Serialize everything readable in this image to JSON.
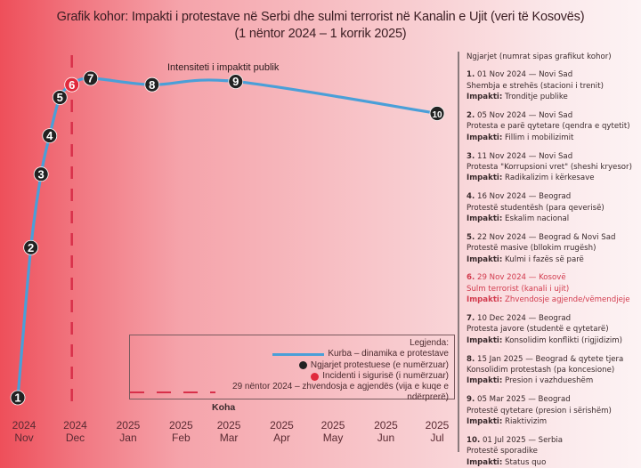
{
  "title": {
    "line1": "Grafik kohor: Impakti i protestave në Serbi dhe sulmi terrorist në Kanalin e Ujit (veri të Kosovës)",
    "line2": "(1 nëntor 2024 – 1 korrik 2025)"
  },
  "chart_data": {
    "type": "line",
    "title": "Grafik kohor: Impakti i protestave në Serbi dhe sulmi terrorist në Kanalin e Ujit (veri të Kosovës) (1 nëntor 2024 – 1 korrik 2025)",
    "xlabel": "Koha",
    "ylabel": "Intensiteti i impaktit publik",
    "x_unit": "days since 1 Nov 2024",
    "xlim": [
      0,
      242
    ],
    "ylim": [
      0,
      100
    ],
    "grid": false,
    "legend_position": "bottom-center",
    "x_ticks": [
      {
        "day": 0,
        "year": "2024",
        "month": "Nov"
      },
      {
        "day": 30,
        "year": "2024",
        "month": "Dec"
      },
      {
        "day": 61,
        "year": "2025",
        "month": "Jan"
      },
      {
        "day": 92,
        "year": "2025",
        "month": "Feb"
      },
      {
        "day": 120,
        "year": "2025",
        "month": "Mar"
      },
      {
        "day": 151,
        "year": "2025",
        "month": "Apr"
      },
      {
        "day": 181,
        "year": "2025",
        "month": "May"
      },
      {
        "day": 212,
        "year": "2025",
        "month": "Jun"
      },
      {
        "day": 242,
        "year": "2025",
        "month": "Jul"
      }
    ],
    "series": [
      {
        "name": "Kurba – dinamika e protestave",
        "color": "#4a9fd8",
        "points": [
          {
            "label": "1",
            "day": 0,
            "value": 0,
            "kind": "protest"
          },
          {
            "label": "2",
            "day": 4,
            "value": 47,
            "kind": "protest"
          },
          {
            "label": "3",
            "day": 10,
            "value": 70,
            "kind": "protest"
          },
          {
            "label": "4",
            "day": 15,
            "value": 82,
            "kind": "protest"
          },
          {
            "label": "5",
            "day": 21,
            "value": 94,
            "kind": "protest"
          },
          {
            "label": "6",
            "day": 28,
            "value": 98,
            "kind": "incident"
          },
          {
            "label": "7",
            "day": 39,
            "value": 100,
            "kind": "protest"
          },
          {
            "label": "8",
            "day": 75,
            "value": 98,
            "kind": "protest"
          },
          {
            "label": "9",
            "day": 124,
            "value": 99,
            "kind": "protest"
          },
          {
            "label": "10",
            "day": 242,
            "value": 89,
            "kind": "protest"
          }
        ]
      }
    ],
    "vline": {
      "day": 28,
      "color": "#d8304a",
      "label": "29 nëntor 2024 – zhvendosja e agjendës (vija e kuqe e ndërprerë)"
    },
    "annotation": "Intensiteti i impaktit publik",
    "colors": {
      "protest": "#222222",
      "incident": "#e02a3c",
      "curve": "#4a9fd8"
    }
  },
  "legend": {
    "title": "Legjenda:",
    "curve": "Kurba – dinamika e protestave",
    "protest": "Ngjarjet protestuese (e numërzuar)",
    "incident": "Incidenti i sigurisë (i numërzuar)",
    "dashed": "29 nëntor 2024 – zhvendosja e agjendës (vija e kuqe e ndërprerë)"
  },
  "sidebar": {
    "heading": "Ngjarjet (numrat sipas grafikut kohor)",
    "impact_label": "Impakti:",
    "events": [
      {
        "num": "1.",
        "date": "01 Nov 2024 — Novi Sad",
        "desc": "Shembja e strehës (stacioni i trenit)",
        "impact": "Tronditje publike"
      },
      {
        "num": "2.",
        "date": "05 Nov 2024 — Novi Sad",
        "desc": "Protesta e parë qytetare (qendra e qytetit)",
        "impact": "Fillim i mobilizimit"
      },
      {
        "num": "3.",
        "date": "11 Nov 2024 — Novi Sad",
        "desc": "Protesta \"Korrupsioni vret\" (sheshi kryesor)",
        "impact": "Radikalizim i kërkesave"
      },
      {
        "num": "4.",
        "date": "16 Nov 2024 — Beograd",
        "desc": "Protestë studentësh (para qeverisë)",
        "impact": "Eskalim nacional"
      },
      {
        "num": "5.",
        "date": "22 Nov 2024 — Beograd & Novi Sad",
        "desc": "Protestë masive (bllokim rrugësh)",
        "impact": "Kulmi i fazës së parë"
      },
      {
        "num": "6.",
        "date": "29 Nov 2024 — Kosovë",
        "desc": "Sulm terrorist (kanali i ujit)",
        "impact": "Zhvendosje agjende/vëmendjeje"
      },
      {
        "num": "7.",
        "date": "10 Dec 2024 — Beograd",
        "desc": "Protesta javore (studentë e qytetarë)",
        "impact": "Konsolidim konflikti (rigjidizim)"
      },
      {
        "num": "8.",
        "date": "15 Jan 2025 — Beograd & qytete tjera",
        "desc": "Konsolidim protestash (pa koncesione)",
        "impact": "Presion i vazhdueshëm"
      },
      {
        "num": "9.",
        "date": "05 Mar 2025 — Beograd",
        "desc": "Protestë qytetare (presion i sërishëm)",
        "impact": "Riaktivizim"
      },
      {
        "num": "10.",
        "date": "01 Jul 2025 — Serbia",
        "desc": "Protestë sporadike",
        "impact": "Status quo"
      }
    ]
  }
}
